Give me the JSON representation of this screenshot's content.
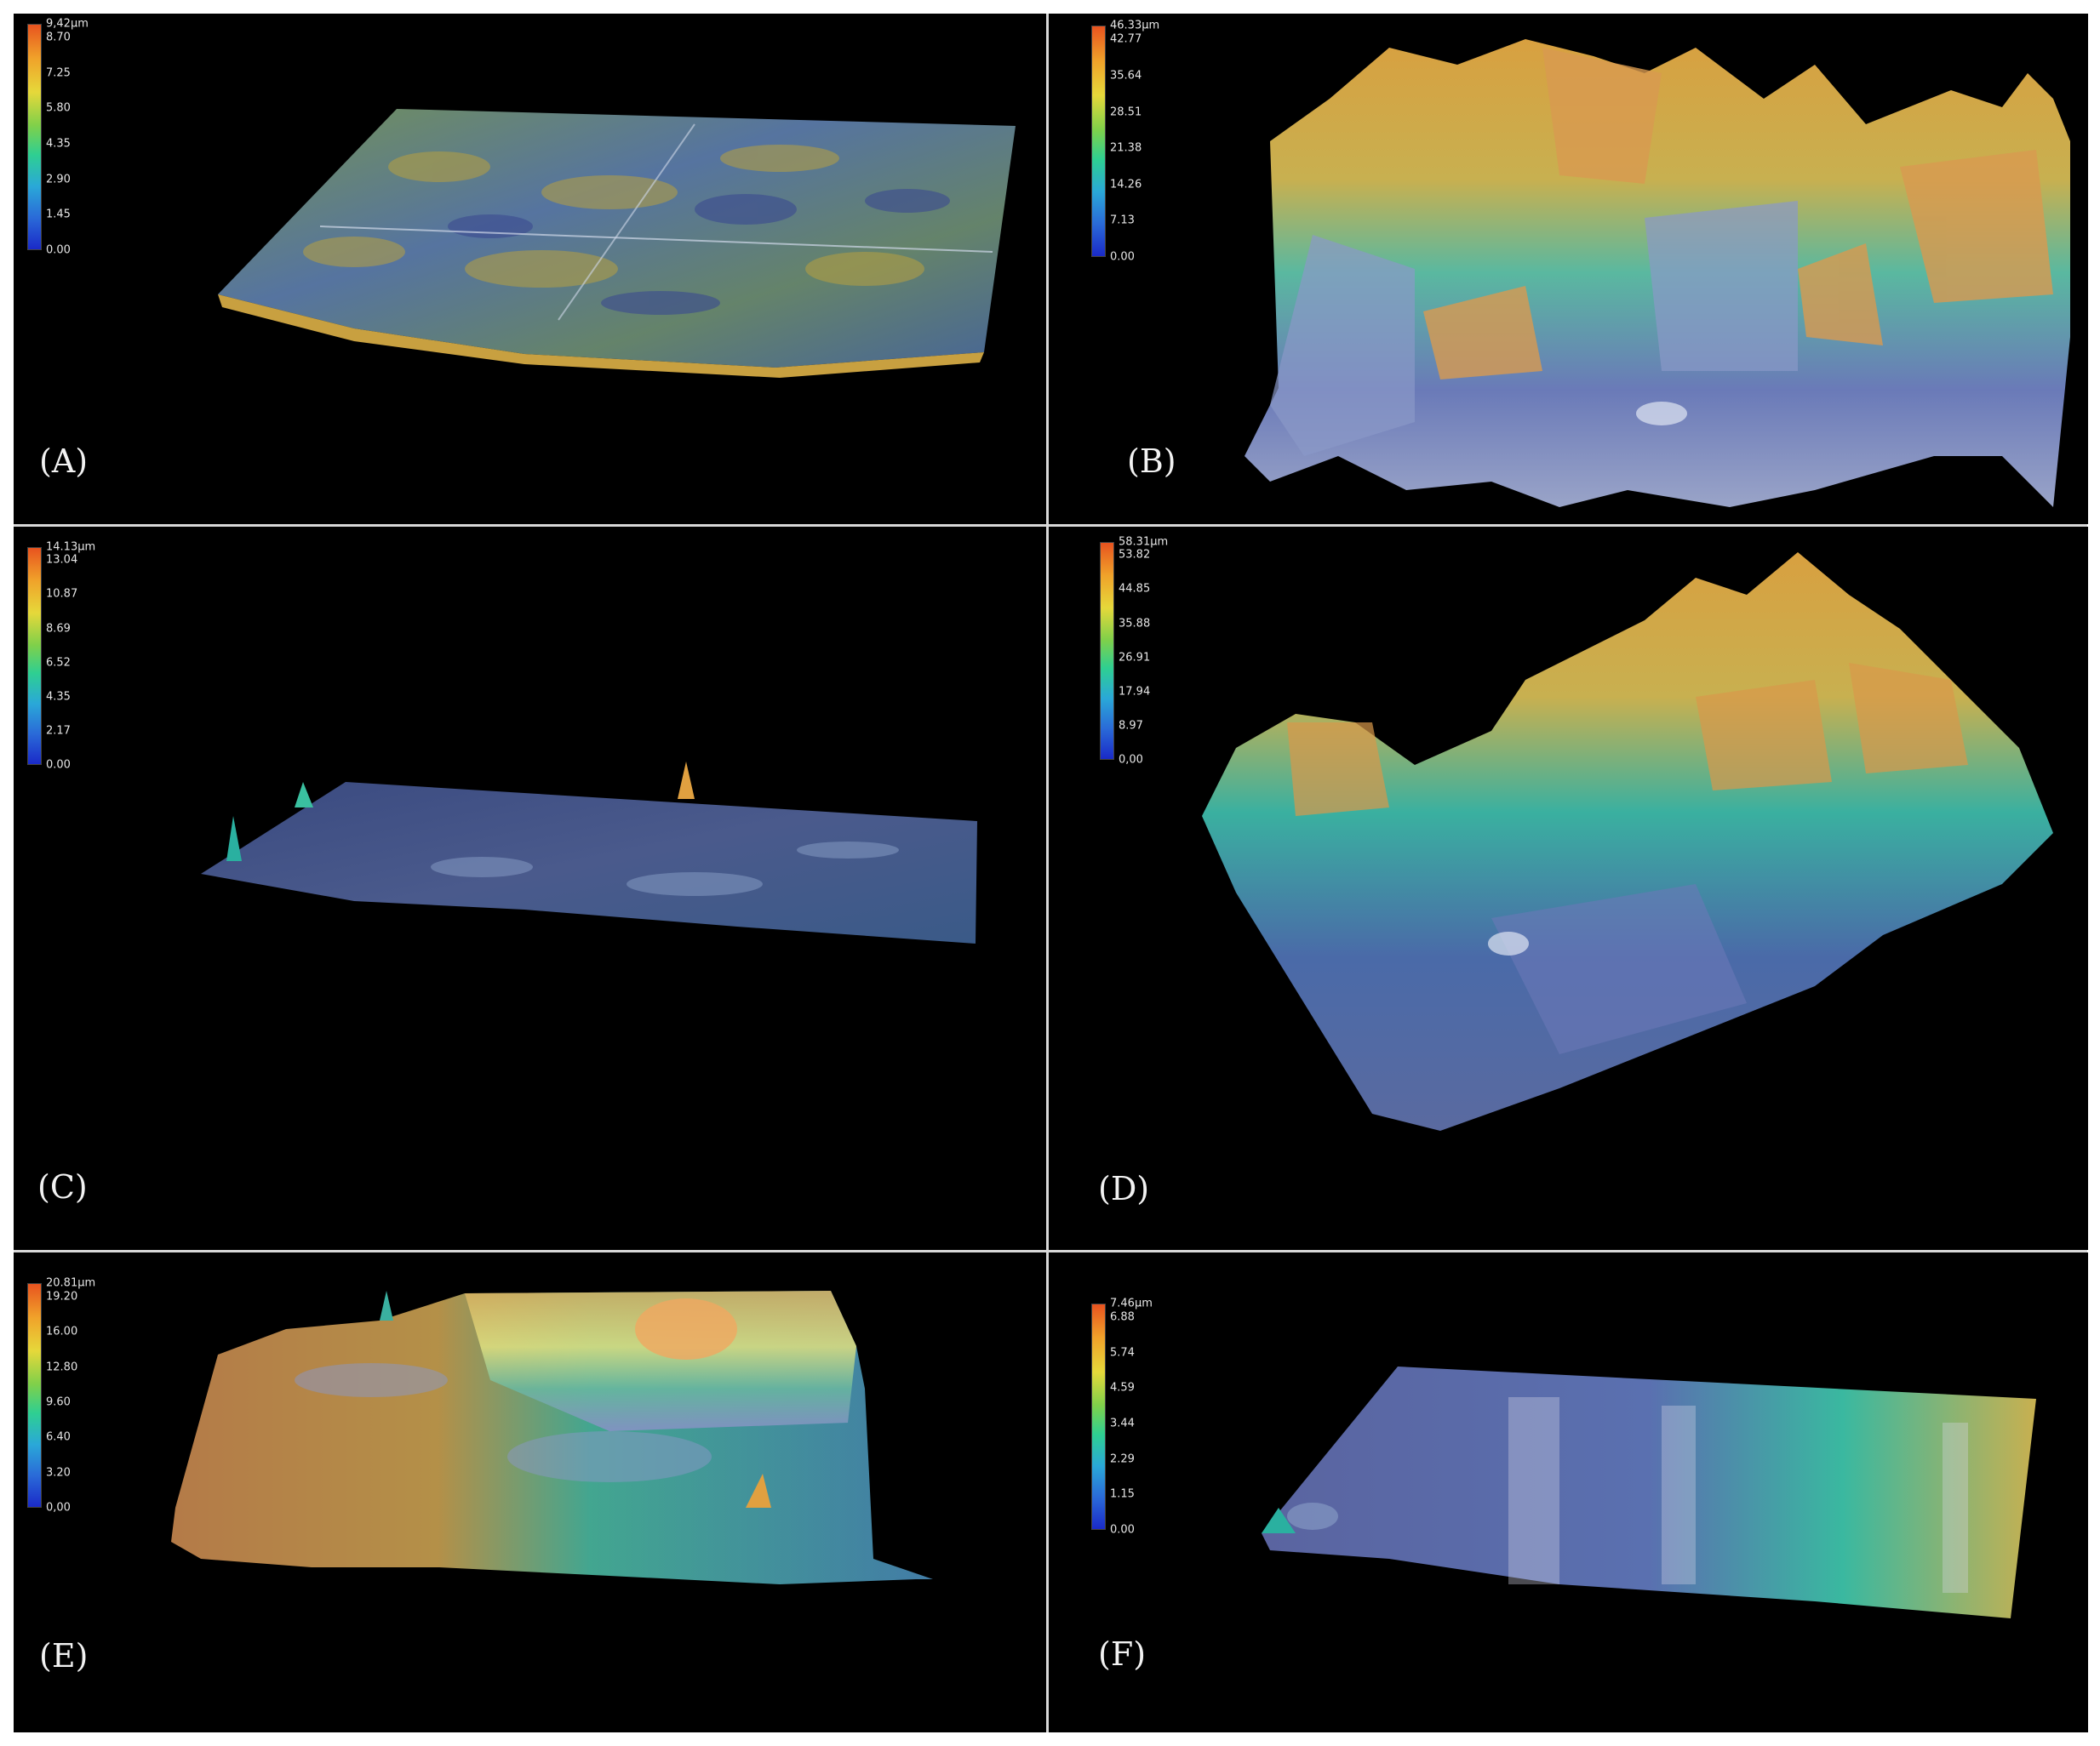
{
  "panels": [
    {
      "label": "(A)",
      "colorbar_ticks": [
        "9,42µm",
        "8.70",
        "7.25",
        "5.80",
        "4.35",
        "2.90",
        "1.45",
        "0.00"
      ]
    },
    {
      "label": "(B)",
      "colorbar_ticks": [
        "46.33µm",
        "42.77",
        "35.64",
        "28.51",
        "21.38",
        "14.26",
        "7.13",
        "0.00"
      ]
    },
    {
      "label": "(C)",
      "colorbar_ticks": [
        "14.13µm",
        "13.04",
        "10.87",
        "8.69",
        "6.52",
        "4.35",
        "2.17",
        "0.00"
      ]
    },
    {
      "label": "(D)",
      "colorbar_ticks": [
        "58.31µm",
        "53.82",
        "44.85",
        "35.88",
        "26.91",
        "17.94",
        "8.97",
        "0,00"
      ]
    },
    {
      "label": "(E)",
      "colorbar_ticks": [
        "20.81µm",
        "19.20",
        "16.00",
        "12.80",
        "9.60",
        "6.40",
        "3.20",
        "0,00"
      ]
    },
    {
      "label": "(F)",
      "colorbar_ticks": [
        "7.46µm",
        "6.88",
        "5.74",
        "4.59",
        "3.44",
        "2.29",
        "1.15",
        "0.00"
      ]
    }
  ],
  "colors": {
    "background": "#000000",
    "frame": "#d8d8d8",
    "high": "#e8531f",
    "mid": "#7fd04a",
    "low": "#1a2ac8",
    "base": "#4a5a8c"
  }
}
